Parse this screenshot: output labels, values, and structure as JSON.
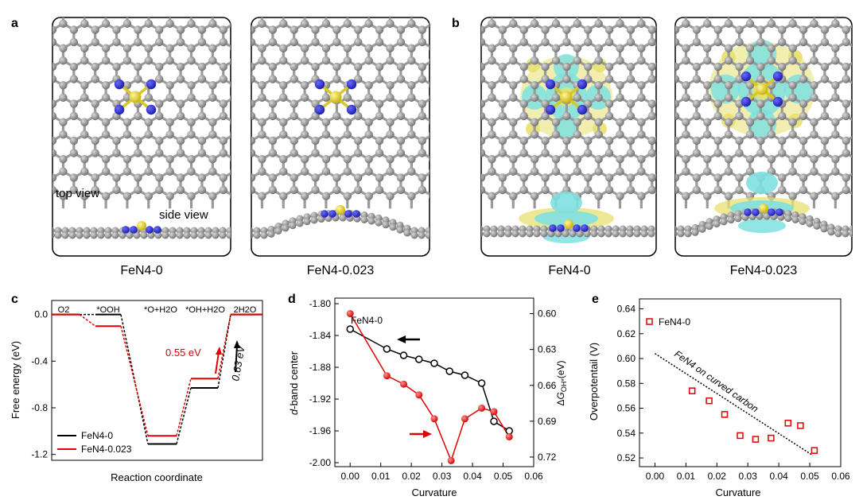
{
  "panel_a": {
    "label": "a",
    "view_top": "top view",
    "view_side": "side view",
    "caption_left": "FeN4-0",
    "caption_right": "FeN4-0.023"
  },
  "panel_b": {
    "label": "b",
    "caption_left": "FeN4-0",
    "caption_right": "FeN4-0.023"
  },
  "colors": {
    "carbon": "#808080",
    "nitrogen": "#2323c8",
    "iron": "#e6d21e",
    "density_yellow": "#e8e070",
    "density_cyan": "#7fe0e0",
    "black_series": "#000000",
    "red_series": "#e00000"
  },
  "chart_data": [
    {
      "panel": "c",
      "type": "line",
      "xlabel": "Reaction coordinate",
      "ylabel": "Free energy (eV)",
      "ylim": [
        -1.25,
        0.12
      ],
      "yticks": [
        "0.0",
        "-0.4",
        "-0.8",
        "-1.2"
      ],
      "ytick_values": [
        0.0,
        -0.4,
        -0.8,
        -1.2
      ],
      "states": [
        "O2",
        "*OOH",
        "*O+H2O",
        "*OH+H2O",
        "2H2O"
      ],
      "series": [
        {
          "name": "FeN4-0",
          "values": [
            0.0,
            0.0,
            -1.11,
            -0.63,
            0.0
          ]
        },
        {
          "name": "FeN4-0.023",
          "values": [
            0.0,
            -0.1,
            -1.04,
            -0.55,
            0.0
          ]
        }
      ],
      "annotations": [
        "0.55 eV",
        "0.63 eV"
      ]
    },
    {
      "panel": "d",
      "type": "line",
      "xlabel": "Curvature",
      "ylabel": "d-band center",
      "y2label": "ΔG OH* (eV)",
      "xlim": [
        -0.005,
        0.06
      ],
      "xticks": [
        "0.00",
        "0.01",
        "0.02",
        "0.03",
        "0.04",
        "0.05",
        "0.06"
      ],
      "ylim": [
        -2.0,
        -1.8
      ],
      "yticks": [
        "-1.80",
        "-1.84",
        "-1.88",
        "-1.92",
        "-1.96",
        "-2.00"
      ],
      "y2lim": [
        0.587,
        0.728
      ],
      "y2ticks": [
        "0.60",
        "0.63",
        "0.66",
        "0.69",
        "0.72"
      ],
      "annotation": "FeN4-0",
      "series": [
        {
          "axis": "left",
          "x": [
            0.0,
            0.012,
            0.0175,
            0.0225,
            0.0275,
            0.0325,
            0.0375,
            0.043,
            0.047,
            0.052
          ],
          "y": [
            -1.832,
            -1.857,
            -1.865,
            -1.87,
            -1.875,
            -1.885,
            -1.89,
            -1.9,
            -1.948,
            -1.96
          ]
        },
        {
          "axis": "right",
          "x": [
            0.0,
            0.012,
            0.0175,
            0.0225,
            0.0275,
            0.033,
            0.0375,
            0.043,
            0.047,
            0.052
          ],
          "y": [
            0.6,
            0.652,
            0.659,
            0.668,
            0.688,
            0.723,
            0.688,
            0.679,
            0.682,
            0.703
          ]
        }
      ]
    },
    {
      "panel": "e",
      "type": "scatter",
      "xlabel": "Curvature",
      "ylabel": "Overpotentail (V)",
      "xlim": [
        -0.005,
        0.06
      ],
      "xticks": [
        "0.00",
        "0.01",
        "0.02",
        "0.03",
        "0.04",
        "0.05",
        "0.06"
      ],
      "ylim": [
        0.513,
        0.648
      ],
      "yticks": [
        "0.64",
        "0.62",
        "0.60",
        "0.58",
        "0.56",
        "0.54",
        "0.52"
      ],
      "ytick_values": [
        0.64,
        0.62,
        0.6,
        0.58,
        0.56,
        0.54,
        0.52
      ],
      "legend": "FeN4-0",
      "trend_label": "FeN4 on curved carbon",
      "trend": {
        "x": [
          0.0,
          0.051
        ],
        "y": [
          0.604,
          0.522
        ]
      },
      "x": [
        0.012,
        0.0175,
        0.0225,
        0.0275,
        0.0325,
        0.0375,
        0.043,
        0.047,
        0.0515
      ],
      "y": [
        0.574,
        0.566,
        0.555,
        0.538,
        0.535,
        0.536,
        0.548,
        0.546,
        0.526
      ]
    }
  ]
}
